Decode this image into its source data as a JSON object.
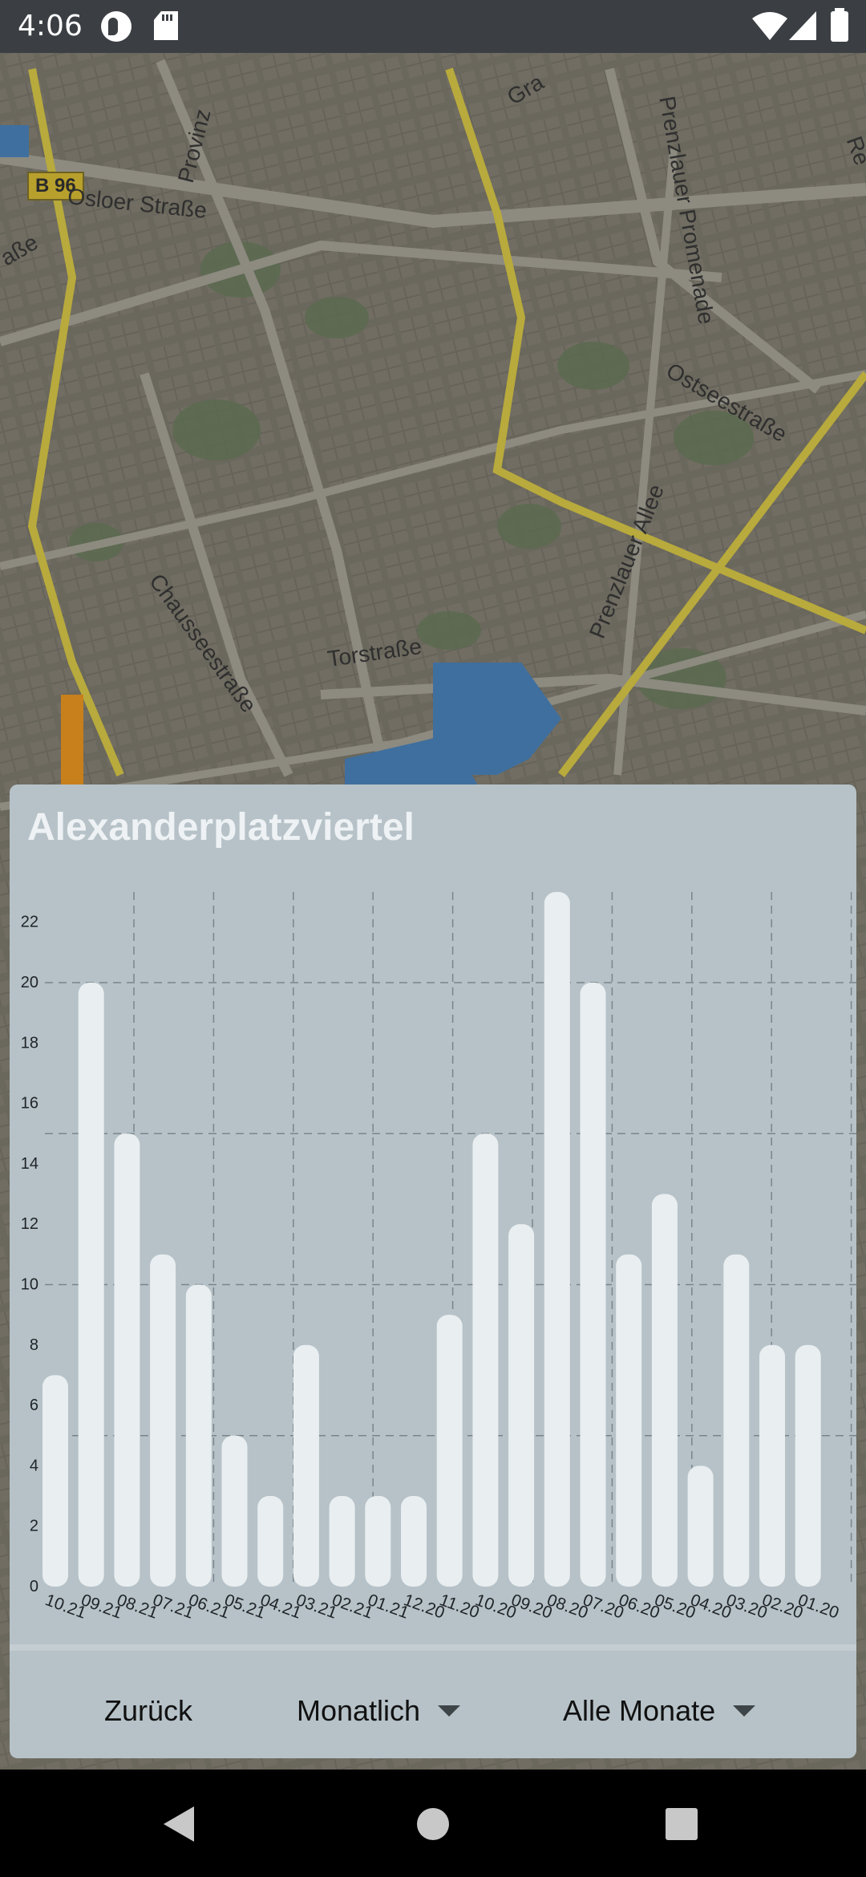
{
  "status_bar": {
    "time": "4:06"
  },
  "map": {
    "labels": [
      "Osloer Straße",
      "Ostseestraße",
      "Prenzlauer Allee",
      "Torstraße",
      "Chausseestraße",
      "Prenzlauer Promenade",
      "Provinz",
      "Gra",
      "aße",
      "Re"
    ],
    "road_badge": "B 96"
  },
  "sheet": {
    "title": "Alexanderplatzviertel",
    "footer": {
      "back": "Zurück",
      "period": "Monatlich",
      "range": "Alle Monate"
    }
  },
  "chart_data": {
    "type": "bar",
    "title": "Alexanderplatzviertel",
    "categories": [
      "10.21",
      "09.21",
      "08.21",
      "07.21",
      "06.21",
      "05.21",
      "04.21",
      "03.21",
      "02.21",
      "01.21",
      "12.20",
      "11.20",
      "10.20",
      "09.20",
      "08.20",
      "07.20",
      "06.20",
      "05.20",
      "04.20",
      "03.20",
      "02.20",
      "01.20"
    ],
    "values": [
      7,
      20,
      15,
      11,
      10,
      5,
      3,
      8,
      3,
      3,
      3,
      9,
      15,
      12,
      23,
      20,
      11,
      13,
      4,
      11,
      8,
      8
    ],
    "y_ticks": [
      0,
      2,
      4,
      6,
      8,
      10,
      12,
      14,
      16,
      18,
      20,
      22
    ],
    "ylim": [
      0,
      23
    ],
    "bar_color": "#e9eef0",
    "grid": true
  },
  "colors": {
    "sheet_bg": "#b6c2c8",
    "status_bar": "#3b3f43",
    "nav_bar": "#000000"
  }
}
